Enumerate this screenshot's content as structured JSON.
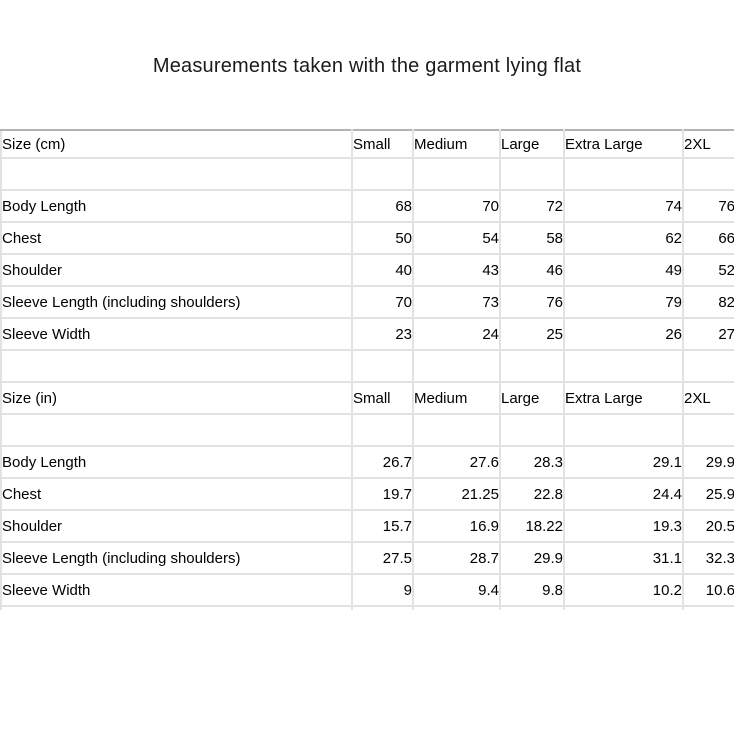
{
  "title": "Measurements taken with the garment lying flat",
  "colors": {
    "background": "#ffffff",
    "grid_line": "#e2e2e2",
    "table_top_border": "#b3b3b3",
    "text": "#000000"
  },
  "chart_data": [
    {
      "type": "table",
      "title": "Size (cm)",
      "columns": [
        "Small",
        "Medium",
        "Large",
        "Extra Large",
        "2XL"
      ],
      "rows": [
        {
          "label": "Body Length",
          "values": [
            68,
            70,
            72,
            74,
            76
          ]
        },
        {
          "label": "Chest",
          "values": [
            50,
            54,
            58,
            62,
            66
          ]
        },
        {
          "label": "Shoulder",
          "values": [
            40,
            43,
            46,
            49,
            52
          ]
        },
        {
          "label": "Sleeve Length (including shoulders)",
          "values": [
            70,
            73,
            76,
            79,
            82
          ]
        },
        {
          "label": "Sleeve Width",
          "values": [
            23,
            24,
            25,
            26,
            27
          ]
        }
      ]
    },
    {
      "type": "table",
      "title": "Size (in)",
      "columns": [
        "Small",
        "Medium",
        "Large",
        "Extra Large",
        "2XL"
      ],
      "rows": [
        {
          "label": "Body Length",
          "values": [
            26.7,
            27.6,
            28.3,
            29.1,
            29.9
          ]
        },
        {
          "label": "Chest",
          "values": [
            19.7,
            21.25,
            22.8,
            24.4,
            25.9
          ]
        },
        {
          "label": "Shoulder",
          "values": [
            15.7,
            16.9,
            18.22,
            19.3,
            20.5
          ]
        },
        {
          "label": "Sleeve Length (including shoulders)",
          "values": [
            27.5,
            28.7,
            29.9,
            31.1,
            32.3
          ]
        },
        {
          "label": "Sleeve Width",
          "values": [
            9,
            9.4,
            9.8,
            10.2,
            10.6
          ]
        }
      ]
    }
  ]
}
